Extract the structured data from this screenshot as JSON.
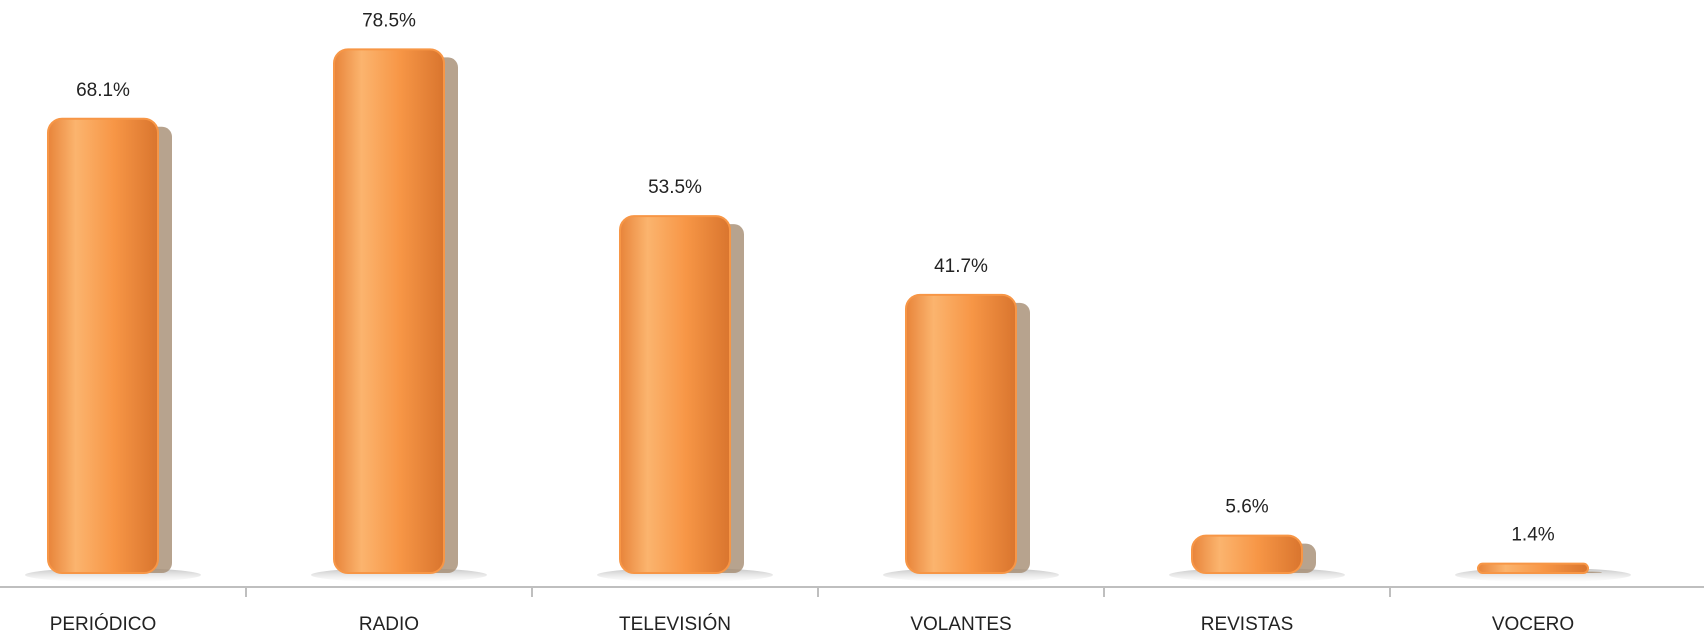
{
  "chart_data": {
    "type": "bar",
    "categories": [
      "PERIÓDICO",
      "RADIO",
      "TELEVISIÓN",
      "VOLANTES",
      "REVISTAS",
      "VOCERO"
    ],
    "values": [
      68.1,
      78.5,
      53.5,
      41.7,
      5.6,
      1.4
    ],
    "value_labels": [
      "68.1%",
      "78.5%",
      "53.5%",
      "41.7%",
      "5.6%",
      "1.4%"
    ],
    "color": "#f79646"
  }
}
